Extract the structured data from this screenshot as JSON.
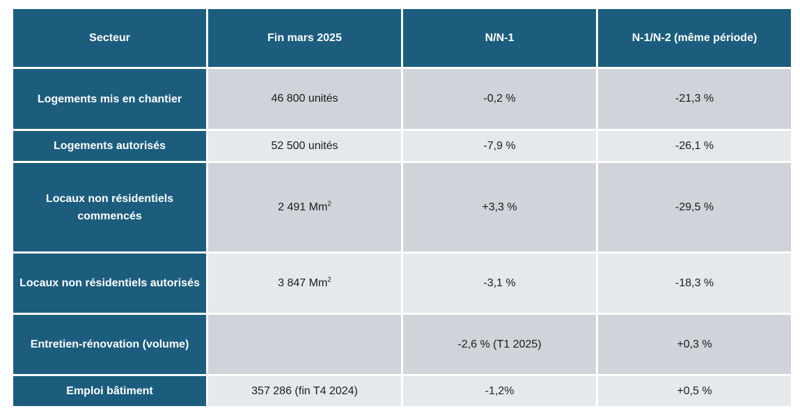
{
  "columns": [
    "Secteur",
    "Fin mars 2025",
    "N/N-1",
    "N-1/N-2 (même période)"
  ],
  "rows": [
    {
      "secteur": "Logements mis en chantier",
      "fin": "46 800 unités",
      "n1": "-0,2 %",
      "n2": "-21,3 %"
    },
    {
      "secteur": "Logements autorisés",
      "fin": "52 500 unités",
      "n1": "-7,9 %",
      "n2": "-26,1 %"
    },
    {
      "secteur": "Locaux non résidentiels commencés",
      "fin": "2 491 Mm",
      "fin_sup": "2",
      "n1": "+3,3 %",
      "n2": "-29,5 %"
    },
    {
      "secteur": "Locaux non résidentiels autorisés",
      "fin": "3 847 Mm",
      "fin_sup": "2",
      "n1": "-3,1 %",
      "n2": "-18,3 %"
    },
    {
      "secteur": "Entretien-rénovation (volume)",
      "fin": "",
      "n1": "-2,6 % (T1 2025)",
      "n2": "+0,3 %"
    },
    {
      "secteur": "Emploi bâtiment",
      "fin": "357 286 (fin T4 2024)",
      "n1": "-1,2%",
      "n2": "+0,5 %"
    }
  ],
  "colors": {
    "header_bg": "#1c5d7e",
    "row_dark": "#d0d3d9",
    "row_light": "#e6e9ec"
  }
}
